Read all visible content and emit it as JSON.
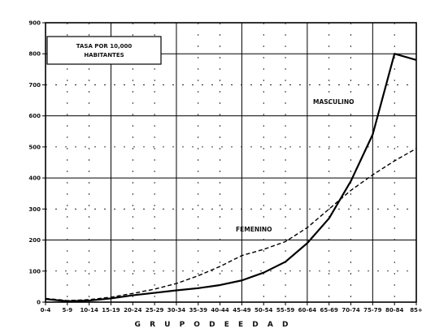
{
  "chart_data": {
    "type": "line",
    "title": "",
    "xlabel": "G R U P O   D E   E D A D",
    "ylabel": "",
    "legend": [
      "TASA POR 10,000",
      "HABITANTES"
    ],
    "categories": [
      "0-4",
      "5-9",
      "10-14",
      "15-19",
      "20-24",
      "25-29",
      "30-34",
      "35-39",
      "40-44",
      "45-49",
      "50-54",
      "55-59",
      "60-64",
      "65-69",
      "70-74",
      "75-79",
      "80-84",
      "85+"
    ],
    "ylim": [
      0,
      900
    ],
    "yticks": [
      0,
      100,
      200,
      300,
      400,
      500,
      600,
      700,
      800,
      900
    ],
    "ytick_labels": [
      "0",
      "100",
      "200",
      "300",
      "400",
      "500",
      "600",
      "700",
      "800",
      "900"
    ],
    "xtick_labels": [
      "0-4",
      "5-9",
      "10-14",
      "15-19",
      "20-24",
      "25-29",
      "30-34",
      "35-39",
      "40-44",
      "45-49",
      "50-54",
      "55-59",
      "60-64",
      "65-69",
      "70-74",
      "75-79",
      "80-84",
      "85+"
    ],
    "series": [
      {
        "name": "MASCULINO",
        "style": "solid",
        "color": "#000000",
        "values": [
          10,
          3,
          5,
          12,
          22,
          30,
          38,
          45,
          55,
          70,
          95,
          130,
          190,
          270,
          390,
          540,
          800,
          780
        ]
      },
      {
        "name": "FEMENINO",
        "style": "dashed",
        "color": "#000000",
        "values": [
          12,
          5,
          8,
          16,
          28,
          42,
          60,
          85,
          115,
          150,
          170,
          195,
          240,
          300,
          360,
          410,
          455,
          495
        ]
      }
    ],
    "grid": true,
    "legend_position": "top-left"
  }
}
